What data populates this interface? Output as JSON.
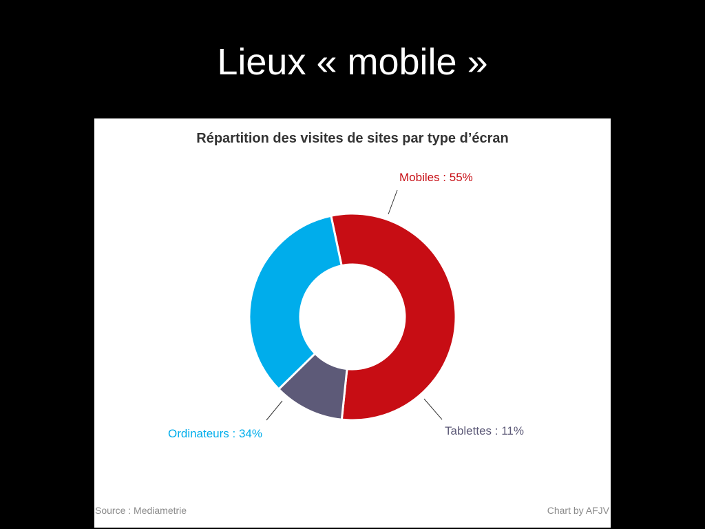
{
  "slide": {
    "title": "Lieux « mobile »"
  },
  "chart_data": {
    "type": "pie",
    "variant": "donut",
    "title": "Répartition des visites de sites par type d’écran",
    "slices": [
      {
        "name": "Mobiles",
        "value": 55,
        "label": "Mobiles : 55%",
        "color": "#c70d14"
      },
      {
        "name": "Tablettes",
        "value": 11,
        "label": "Tablettes : 11%",
        "color": "#5d5a78"
      },
      {
        "name": "Ordinateurs",
        "value": 34,
        "label": "Ordinateurs : 34%",
        "color": "#00adeb"
      }
    ],
    "source": "Source : Mediametrie",
    "credit": "Chart by AFJV"
  }
}
